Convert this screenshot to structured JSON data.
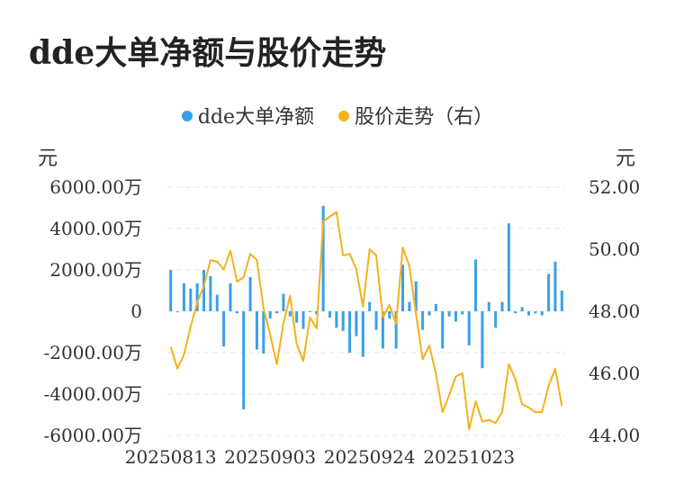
{
  "chart_data": {
    "type": "bar+line",
    "title": "dde大单净额与股价走势",
    "legend": [
      {
        "name": "dde大单净额",
        "color": "#3AA0E8"
      },
      {
        "name": "股价走势（右）",
        "color": "#F2B21A"
      }
    ],
    "y_left_unit": "元",
    "y_right_unit": "元",
    "y_left_ticks": [
      "6000.00万",
      "4000.00万",
      "2000.00万",
      "0",
      "-2000.00万",
      "-4000.00万",
      "-6000.00万"
    ],
    "y_left_range": [
      -6000,
      6000
    ],
    "y_right_ticks": [
      "52.00",
      "50.00",
      "48.00",
      "46.00",
      "44.00"
    ],
    "y_right_range": [
      44,
      52
    ],
    "x_tick_labels": [
      "20250813",
      "20250903",
      "20250924",
      "20251023"
    ],
    "x_tick_index": [
      0,
      15,
      30,
      45
    ],
    "series": [
      {
        "name": "dde大单净额",
        "type": "bar",
        "color": "#3AA0E8",
        "values": [
          2000,
          -50,
          1350,
          1100,
          1350,
          2000,
          1700,
          800,
          -1700,
          1350,
          -100,
          -4750,
          1650,
          -1850,
          -2050,
          -350,
          -100,
          850,
          -250,
          -550,
          -850,
          0,
          -150,
          5100,
          -300,
          -800,
          -950,
          -2000,
          -1200,
          -2200,
          450,
          -900,
          -1800,
          -350,
          -1800,
          2250,
          450,
          1450,
          -900,
          -200,
          350,
          -1800,
          -250,
          -500,
          -150,
          -1650,
          2500,
          -2750,
          450,
          -800,
          450,
          4250,
          -100,
          200,
          -200,
          -100,
          -200,
          1800,
          2400,
          1000
        ]
      },
      {
        "name": "股价走势（右）",
        "type": "line",
        "color": "#F2B21A",
        "values": [
          46.85,
          46.15,
          46.6,
          47.5,
          48.3,
          48.8,
          49.65,
          49.6,
          49.35,
          49.95,
          48.95,
          49.1,
          49.85,
          49.65,
          48.1,
          47.25,
          46.3,
          47.6,
          48.5,
          46.95,
          46.4,
          47.8,
          47.45,
          50.9,
          51.05,
          51.2,
          49.8,
          49.85,
          49.35,
          48.15,
          50.0,
          49.8,
          47.8,
          48.2,
          47.6,
          50.05,
          49.45,
          47.9,
          46.45,
          46.9,
          46.0,
          44.75,
          45.3,
          45.9,
          46.0,
          44.2,
          45.1,
          44.45,
          44.5,
          44.4,
          44.75,
          46.3,
          45.8,
          45.0,
          44.9,
          44.75,
          44.75,
          45.6,
          46.15,
          44.95
        ]
      }
    ]
  }
}
